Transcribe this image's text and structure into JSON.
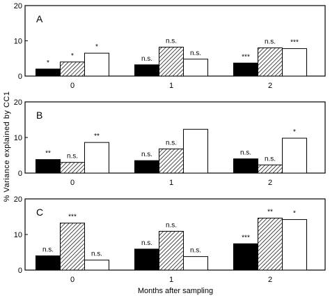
{
  "colors": {
    "black_bar": "#000000",
    "hatched_bar": "#bbbbbb",
    "white_bar": "#ffffff",
    "frame": "#000000"
  },
  "figure": {
    "ylabel": "% Variance explained by CC1",
    "xlabel": "Months after sampling"
  },
  "chart_data": [
    {
      "type": "bar",
      "panel": "A",
      "categories": [
        "0",
        "1",
        "2"
      ],
      "ylim": [
        0,
        20
      ],
      "yticks": [
        "0",
        "10",
        "20"
      ],
      "series": [
        {
          "fill": "solid",
          "values": [
            2.0,
            3.2,
            3.7
          ],
          "labels": [
            "*",
            "n.s.",
            "***"
          ]
        },
        {
          "fill": "hatched",
          "values": [
            4.0,
            8.2,
            8.0
          ],
          "labels": [
            "*",
            "n.s.",
            "n.s."
          ]
        },
        {
          "fill": "open",
          "values": [
            6.5,
            4.8,
            7.8
          ],
          "labels": [
            "*",
            "n.s.",
            "***"
          ]
        }
      ]
    },
    {
      "type": "bar",
      "panel": "B",
      "categories": [
        "0",
        "1",
        "2"
      ],
      "ylim": [
        0,
        20
      ],
      "yticks": [
        "0",
        "10",
        "20"
      ],
      "series": [
        {
          "fill": "solid",
          "values": [
            3.8,
            3.5,
            4.0
          ],
          "labels": [
            "**",
            "n.s.",
            "n.s."
          ]
        },
        {
          "fill": "hatched",
          "values": [
            3.0,
            6.8,
            2.3
          ],
          "labels": [
            "n.s.",
            "n.s.",
            "n.s."
          ]
        },
        {
          "fill": "open",
          "values": [
            8.6,
            12.3,
            9.8
          ],
          "labels": [
            "**",
            "",
            "*"
          ]
        }
      ]
    },
    {
      "type": "bar",
      "panel": "C",
      "categories": [
        "0",
        "1",
        "2"
      ],
      "ylim": [
        0,
        20
      ],
      "yticks": [
        "0",
        "10",
        "20"
      ],
      "series": [
        {
          "fill": "solid",
          "values": [
            4.0,
            5.9,
            7.4
          ],
          "labels": [
            "n.s.",
            "n.s.",
            "***"
          ]
        },
        {
          "fill": "hatched",
          "values": [
            13.2,
            10.9,
            14.6
          ],
          "labels": [
            "***",
            "n.s.",
            "**"
          ]
        },
        {
          "fill": "open",
          "values": [
            2.8,
            3.8,
            14.2
          ],
          "labels": [
            "n.s.",
            "n.s.",
            "*"
          ]
        }
      ]
    }
  ]
}
